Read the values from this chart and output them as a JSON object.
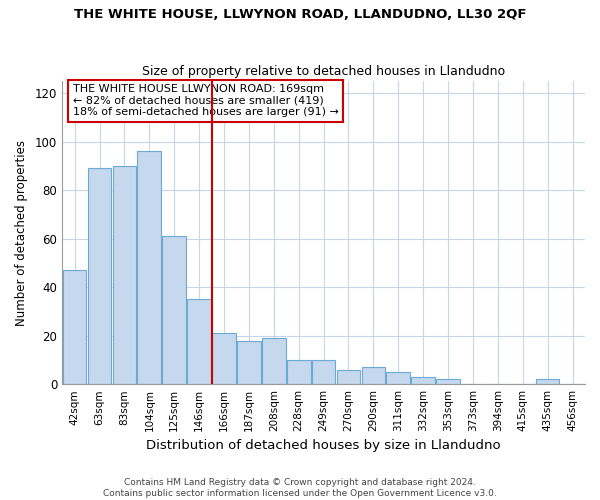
{
  "title1": "THE WHITE HOUSE, LLWYNON ROAD, LLANDUDNO, LL30 2QF",
  "title2": "Size of property relative to detached houses in Llandudno",
  "xlabel": "Distribution of detached houses by size in Llandudno",
  "ylabel": "Number of detached properties",
  "footer1": "Contains HM Land Registry data © Crown copyright and database right 2024.",
  "footer2": "Contains public sector information licensed under the Open Government Licence v3.0.",
  "annotation_line1": "THE WHITE HOUSE LLWYNON ROAD: 169sqm",
  "annotation_line2": "← 82% of detached houses are smaller (419)",
  "annotation_line3": "18% of semi-detached houses are larger (91) →",
  "bar_color": "#c5d8ee",
  "bar_edge_color": "#6aaad4",
  "vline_color": "#cc0000",
  "vline_x": 6,
  "categories": [
    "42sqm",
    "63sqm",
    "83sqm",
    "104sqm",
    "125sqm",
    "146sqm",
    "166sqm",
    "187sqm",
    "208sqm",
    "228sqm",
    "249sqm",
    "270sqm",
    "290sqm",
    "311sqm",
    "332sqm",
    "353sqm",
    "373sqm",
    "394sqm",
    "415sqm",
    "435sqm",
    "456sqm"
  ],
  "values": [
    47,
    89,
    90,
    96,
    61,
    35,
    21,
    18,
    19,
    10,
    10,
    6,
    7,
    5,
    3,
    2,
    0,
    0,
    0,
    2,
    0
  ],
  "ylim": [
    0,
    125
  ],
  "yticks": [
    0,
    20,
    40,
    60,
    80,
    100,
    120
  ],
  "background_color": "#ffffff",
  "plot_bg_color": "#ffffff",
  "grid_color": "#c8d4e8"
}
